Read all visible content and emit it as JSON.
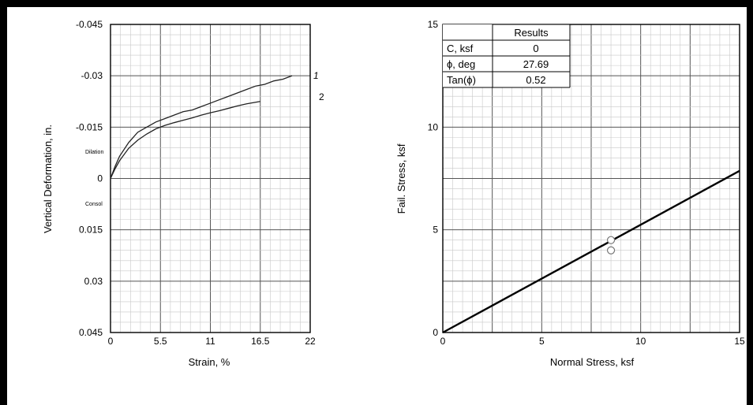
{
  "chart_data": [
    {
      "type": "line",
      "xlabel": "Strain, %",
      "ylabel": "Vertical Deformation, in.",
      "xlim": [
        0,
        22
      ],
      "ylim": [
        -0.045,
        0.045
      ],
      "y_inverted": true,
      "xticks": [
        "0",
        "5.5",
        "11",
        "16.5",
        "22"
      ],
      "yticks": [
        "-0.045",
        "-0.03",
        "-0.015",
        "0",
        "0.015",
        "0.03",
        "0.045"
      ],
      "grid": true,
      "annotations": {
        "upper": "Dilation",
        "lower": "Consol"
      },
      "series": [
        {
          "name": "1",
          "x": [
            0,
            0.5,
            1,
            2,
            3,
            4,
            5,
            6,
            7,
            8,
            9,
            10,
            11,
            12,
            13,
            14,
            15,
            16,
            17,
            18,
            19,
            20
          ],
          "y": [
            0,
            -0.0035,
            -0.0065,
            -0.0105,
            -0.0135,
            -0.015,
            -0.0165,
            -0.0175,
            -0.0185,
            -0.0195,
            -0.02,
            -0.021,
            -0.022,
            -0.023,
            -0.024,
            -0.025,
            -0.026,
            -0.027,
            -0.0275,
            -0.0285,
            -0.029,
            -0.03
          ]
        },
        {
          "name": "2",
          "x": [
            0,
            0.5,
            1,
            2,
            3,
            4,
            5,
            6,
            7,
            8,
            9,
            10,
            11,
            12,
            13,
            14,
            15,
            16.5
          ],
          "y": [
            0,
            -0.0028,
            -0.0052,
            -0.0088,
            -0.0112,
            -0.013,
            -0.0145,
            -0.0155,
            -0.0163,
            -0.017,
            -0.0177,
            -0.0185,
            -0.0192,
            -0.0198,
            -0.0205,
            -0.0212,
            -0.0218,
            -0.0225
          ]
        }
      ]
    },
    {
      "type": "scatter",
      "xlabel": "Normal Stress, ksf",
      "ylabel": "Fail. Stress, ksf",
      "xlim": [
        0,
        15
      ],
      "ylim": [
        0,
        15
      ],
      "xticks": [
        "0",
        "5",
        "10",
        "15"
      ],
      "yticks": [
        "0",
        "5",
        "10",
        "15"
      ],
      "grid": true,
      "points": [
        {
          "x": 8.5,
          "y": 4.5
        },
        {
          "x": 8.5,
          "y": 4.0
        }
      ],
      "fit_line": {
        "x": [
          0,
          15
        ],
        "y": [
          0,
          7.87
        ]
      },
      "results_table": {
        "header": "Results",
        "rows": [
          {
            "label": "C, ksf",
            "value": "0"
          },
          {
            "label": "ϕ, deg",
            "value": "27.69"
          },
          {
            "label": "Tan(ϕ)",
            "value": "0.52"
          }
        ]
      }
    }
  ]
}
